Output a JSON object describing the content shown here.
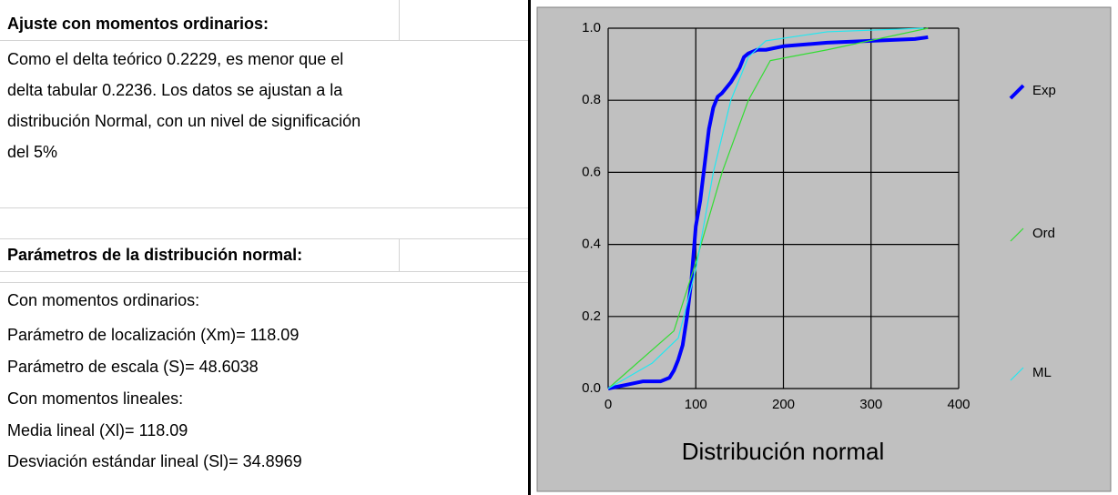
{
  "sheet": {
    "heading1": "Ajuste con momentos ordinarios:",
    "paragraph": [
      "Como el delta teórico 0.2229, es menor que el",
      "delta tabular 0.2236. Los datos se ajustan a la",
      "distribución Normal, con un nivel de significación",
      "del 5%"
    ],
    "heading2": "Parámetros de la distribución normal:",
    "lines": [
      "Con momentos ordinarios:",
      "Parámetro de localización (Xm)= 118.09",
      "Parámetro de escala (S)= 48.6038",
      "Con momentos lineales:",
      "Media lineal (Xl)= 118.09",
      "Desviación estándar lineal (Sl)= 34.8969"
    ]
  },
  "chart_data": {
    "type": "line",
    "xlabel": "Distribución normal",
    "xlim": [
      0,
      400
    ],
    "xticks": [
      0,
      100,
      200,
      300,
      400
    ],
    "ylim": [
      0,
      1
    ],
    "yticks": [
      {
        "value": 0,
        "label": "0.0"
      },
      {
        "value": 0.2,
        "label": "0.2"
      },
      {
        "value": 0.4,
        "label": "0.4"
      },
      {
        "value": 0.6,
        "label": "0.6"
      },
      {
        "value": 0.8,
        "label": "0.8"
      },
      {
        "value": 1,
        "label": "1.0"
      }
    ],
    "grid": true,
    "series": [
      {
        "name": "Exp",
        "color": "#0000ff",
        "x": [
          0,
          20,
          40,
          60,
          70,
          75,
          80,
          85,
          90,
          95,
          100,
          105,
          110,
          115,
          120,
          125,
          130,
          140,
          150,
          155,
          160,
          170,
          180,
          200,
          250,
          300,
          350,
          365
        ],
        "values": [
          0,
          0.01,
          0.02,
          0.02,
          0.03,
          0.05,
          0.08,
          0.12,
          0.2,
          0.3,
          0.45,
          0.52,
          0.62,
          0.72,
          0.78,
          0.81,
          0.82,
          0.85,
          0.89,
          0.92,
          0.93,
          0.94,
          0.94,
          0.95,
          0.96,
          0.965,
          0.97,
          0.975
        ]
      },
      {
        "name": "Ord",
        "color": "#33dd33",
        "x": [
          0,
          75,
          100,
          130,
          160,
          185,
          250,
          365
        ],
        "values": [
          0,
          0.16,
          0.35,
          0.6,
          0.8,
          0.91,
          0.94,
          1
        ]
      },
      {
        "name": "ML",
        "color": "#22e8f0",
        "x": [
          0,
          50,
          80,
          100,
          120,
          140,
          160,
          180,
          250,
          360
        ],
        "values": [
          0,
          0.07,
          0.14,
          0.33,
          0.6,
          0.8,
          0.92,
          0.965,
          0.99,
          1
        ]
      }
    ]
  }
}
